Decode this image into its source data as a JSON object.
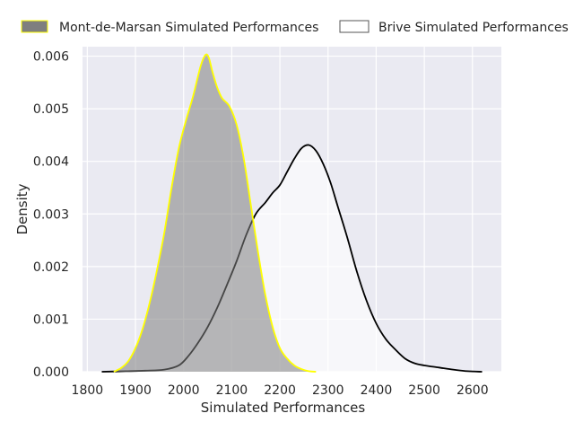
{
  "chart_data": {
    "type": "area",
    "title": "",
    "xlabel": "Simulated Performances",
    "ylabel": "Density",
    "xlim": [
      1790,
      2660
    ],
    "ylim": [
      0,
      0.00618
    ],
    "x_ticks": [
      "1800",
      "1900",
      "2000",
      "2100",
      "2200",
      "2300",
      "2400",
      "2500",
      "2600"
    ],
    "y_ticks": [
      "0.000",
      "0.001",
      "0.002",
      "0.003",
      "0.004",
      "0.005",
      "0.006"
    ],
    "grid": true,
    "legend_position": "top",
    "series": [
      {
        "name": "Mont-de-Marsan Simulated Performances",
        "fill_color": "#7f7f7f",
        "line_color": "#ffff00",
        "filled": true,
        "points": [
          [
            1855,
            0.0
          ],
          [
            1870,
            7e-05
          ],
          [
            1885,
            0.0002
          ],
          [
            1900,
            0.00045
          ],
          [
            1915,
            0.00082
          ],
          [
            1930,
            0.00133
          ],
          [
            1945,
            0.00195
          ],
          [
            1960,
            0.00265
          ],
          [
            1975,
            0.0035
          ],
          [
            1990,
            0.00425
          ],
          [
            2005,
            0.00478
          ],
          [
            2020,
            0.00525
          ],
          [
            2035,
            0.0058
          ],
          [
            2045,
            0.00602
          ],
          [
            2052,
            0.00598
          ],
          [
            2060,
            0.0057
          ],
          [
            2070,
            0.0054
          ],
          [
            2080,
            0.0052
          ],
          [
            2095,
            0.00505
          ],
          [
            2110,
            0.0047
          ],
          [
            2125,
            0.00405
          ],
          [
            2140,
            0.00315
          ],
          [
            2155,
            0.00225
          ],
          [
            2170,
            0.00145
          ],
          [
            2185,
            0.00085
          ],
          [
            2200,
            0.00045
          ],
          [
            2215,
            0.00025
          ],
          [
            2230,
            0.00012
          ],
          [
            2245,
            5e-05
          ],
          [
            2260,
            1e-05
          ],
          [
            2275,
            0.0
          ]
        ]
      },
      {
        "name": "Brive Simulated Performances",
        "fill_color": "#ffffff",
        "line_color": "#000000",
        "filled": false,
        "points": [
          [
            1830,
            0.0
          ],
          [
            1880,
            1e-05
          ],
          [
            1920,
            2e-05
          ],
          [
            1960,
            4e-05
          ],
          [
            1990,
            0.00012
          ],
          [
            2010,
            0.0003
          ],
          [
            2030,
            0.00055
          ],
          [
            2050,
            0.00085
          ],
          [
            2070,
            0.00122
          ],
          [
            2090,
            0.00165
          ],
          [
            2110,
            0.0021
          ],
          [
            2130,
            0.0026
          ],
          [
            2150,
            0.003
          ],
          [
            2170,
            0.00322
          ],
          [
            2185,
            0.0034
          ],
          [
            2200,
            0.00355
          ],
          [
            2215,
            0.0038
          ],
          [
            2230,
            0.00405
          ],
          [
            2245,
            0.00425
          ],
          [
            2260,
            0.00431
          ],
          [
            2275,
            0.0042
          ],
          [
            2290,
            0.00395
          ],
          [
            2305,
            0.0036
          ],
          [
            2320,
            0.00315
          ],
          [
            2340,
            0.00255
          ],
          [
            2360,
            0.0019
          ],
          [
            2380,
            0.00135
          ],
          [
            2400,
            0.00092
          ],
          [
            2420,
            0.00062
          ],
          [
            2440,
            0.00042
          ],
          [
            2460,
            0.00025
          ],
          [
            2480,
            0.00016
          ],
          [
            2500,
            0.00012
          ],
          [
            2530,
            8e-05
          ],
          [
            2560,
            4e-05
          ],
          [
            2590,
            1e-05
          ],
          [
            2620,
            0.0
          ]
        ]
      }
    ]
  }
}
